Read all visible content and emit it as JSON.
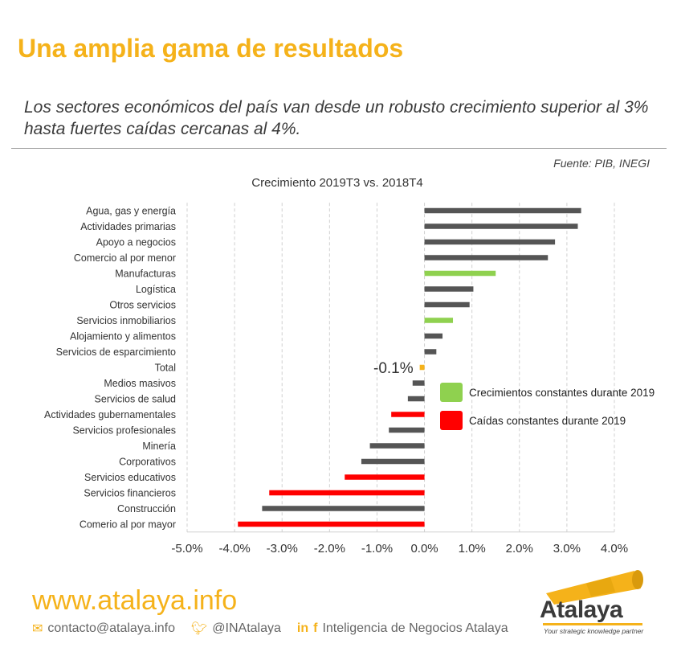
{
  "header": {
    "title": "Una amplia gama de resultados",
    "subtitle": "Los sectores económicos del país van desde un robusto crecimiento superior al 3% hasta fuertes caídas cercanas al 4%.",
    "source": "Fuente: PIB, INEGI"
  },
  "chart_data": {
    "type": "bar",
    "orientation": "horizontal",
    "title": "Crecimiento 2019T3 vs. 2018T4",
    "xlabel": "",
    "ylabel": "",
    "xlim": [
      -5.0,
      4.0
    ],
    "grid": true,
    "categories": [
      "Agua, gas y energía",
      "Actividades primarias",
      "Apoyo a negocios",
      "Comercio al por menor",
      "Manufacturas",
      "Logística",
      "Otros servicios",
      "Servicios inmobiliarios",
      "Alojamiento y alimentos",
      "Servicios de esparcimiento",
      "Total",
      "Medios masivos",
      "Servicios de salud",
      "Actividades gubernamentales",
      "Servicios profesionales",
      "Minería",
      "Corporativos",
      "Servicios educativos",
      "Servicios financieros",
      "Construcción",
      "Comerio al por mayor"
    ],
    "values": [
      3.3,
      3.23,
      2.75,
      2.6,
      1.5,
      1.03,
      0.95,
      0.6,
      0.38,
      0.25,
      -0.1,
      -0.25,
      -0.35,
      -0.7,
      -0.75,
      -1.15,
      -1.33,
      -1.68,
      -3.27,
      -3.42,
      -3.93
    ],
    "bar_colors": [
      "#555555",
      "#555555",
      "#555555",
      "#555555",
      "#8fd14f",
      "#555555",
      "#555555",
      "#8fd14f",
      "#555555",
      "#555555",
      "#f5b21a",
      "#555555",
      "#555555",
      "#ff0000",
      "#555555",
      "#555555",
      "#555555",
      "#ff0000",
      "#ff0000",
      "#555555",
      "#ff0000"
    ],
    "ticks": [
      "-5.0%",
      "-4.0%",
      "-3.0%",
      "-2.0%",
      "-1.0%",
      "0.0%",
      "1.0%",
      "2.0%",
      "3.0%",
      "4.0%"
    ],
    "tick_values": [
      -5,
      -4,
      -3,
      -2,
      -1,
      0,
      1,
      2,
      3,
      4
    ],
    "annotation": "-0.1%",
    "legend": {
      "placement": "right-center",
      "items": [
        {
          "label": "Crecimientos constantes durante 2019",
          "color": "#8fd14f"
        },
        {
          "label": "Caídas constantes durante 2019",
          "color": "#ff0000"
        }
      ]
    }
  },
  "footer": {
    "url": "www.atalaya.info",
    "email": "contacto@atalaya.info",
    "twitter": "@INAtalaya",
    "social": "Inteligencia de Negocios Atalaya",
    "email_icon": "email-icon",
    "twitter_icon": "twitter-icon",
    "linkedin_icon": "linkedin-icon",
    "facebook_icon": "facebook-icon"
  },
  "logo": {
    "name": "Atalaya",
    "tagline": "Your strategic knowledge partner",
    "icon": "telescope-icon"
  }
}
